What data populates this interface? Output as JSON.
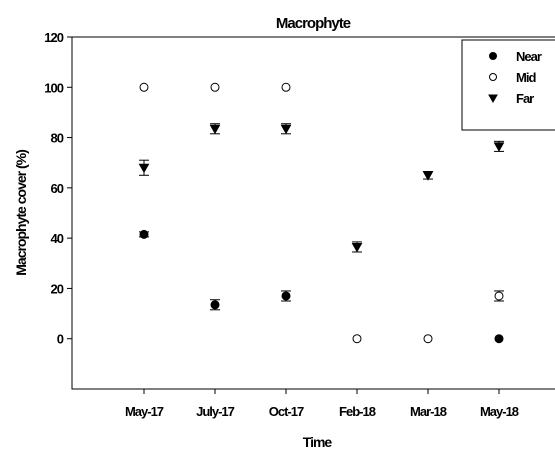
{
  "chart_data": {
    "type": "scatter",
    "title": "Macrophyte",
    "xlabel": "Time",
    "ylabel": "Macrophyte cover (%)",
    "categories": [
      "May-17",
      "July-17",
      "Oct-17",
      "Feb-18",
      "Mar-18",
      "May-18"
    ],
    "ylim": [
      -20,
      120
    ],
    "yticks": [
      0,
      20,
      40,
      60,
      80,
      100,
      120
    ],
    "grid": false,
    "legend_position": "top-right",
    "series": [
      {
        "name": "Near",
        "marker": "filled-circle",
        "values": [
          41.5,
          13.5,
          17,
          null,
          null,
          0
        ],
        "errors": [
          1,
          2,
          2,
          null,
          null,
          0
        ]
      },
      {
        "name": "Mid",
        "marker": "open-circle",
        "values": [
          100,
          100,
          100,
          0,
          0,
          17
        ],
        "errors": [
          0,
          0,
          0,
          0,
          0,
          2
        ]
      },
      {
        "name": "Far",
        "marker": "filled-triangle-down",
        "values": [
          68,
          83.5,
          83.5,
          36.5,
          65,
          76.5
        ],
        "errors": [
          3,
          2,
          2,
          2,
          1.5,
          2
        ]
      }
    ]
  }
}
